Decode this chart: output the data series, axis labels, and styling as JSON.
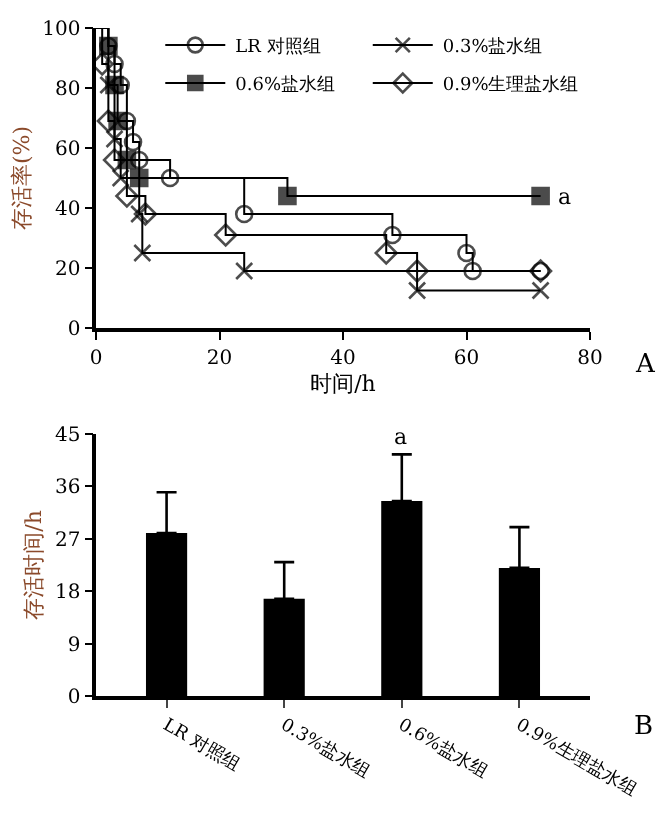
{
  "chart_data": [
    {
      "type": "step",
      "xlabel": "时间/h",
      "ylabel": "存活率(%)",
      "xlim": [
        0,
        80
      ],
      "xticks": [
        0,
        20,
        40,
        60,
        80
      ],
      "ylim": [
        0,
        100
      ],
      "yticks": [
        0,
        20,
        40,
        60,
        80,
        100
      ],
      "grid": false,
      "legend": "top",
      "line_style": "solid",
      "series": [
        {
          "name": "LR 对照组",
          "color": "#000000",
          "marker": "circle",
          "x": [
            0,
            2,
            3,
            4,
            5,
            6,
            7,
            12,
            24,
            48,
            60,
            61,
            72
          ],
          "values": [
            100,
            94,
            88,
            81,
            69,
            62,
            56,
            50,
            38,
            31,
            25,
            19,
            19
          ]
        },
        {
          "name": "0.3%盐水组",
          "color": "#000000",
          "marker": "cross",
          "x": [
            0,
            2,
            3,
            4,
            7,
            7.5,
            24,
            52,
            72
          ],
          "values": [
            100,
            81,
            63,
            50,
            38,
            25,
            19,
            12.5,
            12.5
          ]
        },
        {
          "name": "0.6%盐水组",
          "color": "#000000",
          "marker": "square",
          "x": [
            0,
            2,
            3,
            3.5,
            5,
            7,
            31,
            72
          ],
          "values": [
            100,
            94,
            81,
            69,
            56,
            50,
            44,
            44
          ]
        },
        {
          "name": "0.9%生理盐水组",
          "color": "#000000",
          "marker": "diamond",
          "x": [
            0,
            1,
            2,
            3,
            5,
            8,
            21,
            47,
            52,
            72
          ],
          "values": [
            100,
            88,
            69,
            56,
            44,
            38,
            31,
            25,
            19,
            19
          ]
        }
      ],
      "annotations": [
        {
          "text": "a",
          "x": 72,
          "y": 44
        },
        "A"
      ]
    },
    {
      "type": "bar",
      "ylabel": "存活时间/h",
      "categories": [
        "LR 对照组",
        "0.3%盐水组",
        "0.6%盐水组",
        "0.9%生理盐水组"
      ],
      "ylim": [
        0,
        45
      ],
      "yticks": [
        0,
        9,
        18,
        27,
        36,
        45
      ],
      "grid": false,
      "series": [
        {
          "color": "#000000",
          "values": [
            28,
            16.7,
            33.5,
            22
          ],
          "errors": [
            7,
            6.3,
            8,
            7
          ]
        }
      ],
      "annotations": [
        {
          "text": "a",
          "x": "0.6%盐水组",
          "y": 41.5
        },
        "B"
      ]
    }
  ]
}
